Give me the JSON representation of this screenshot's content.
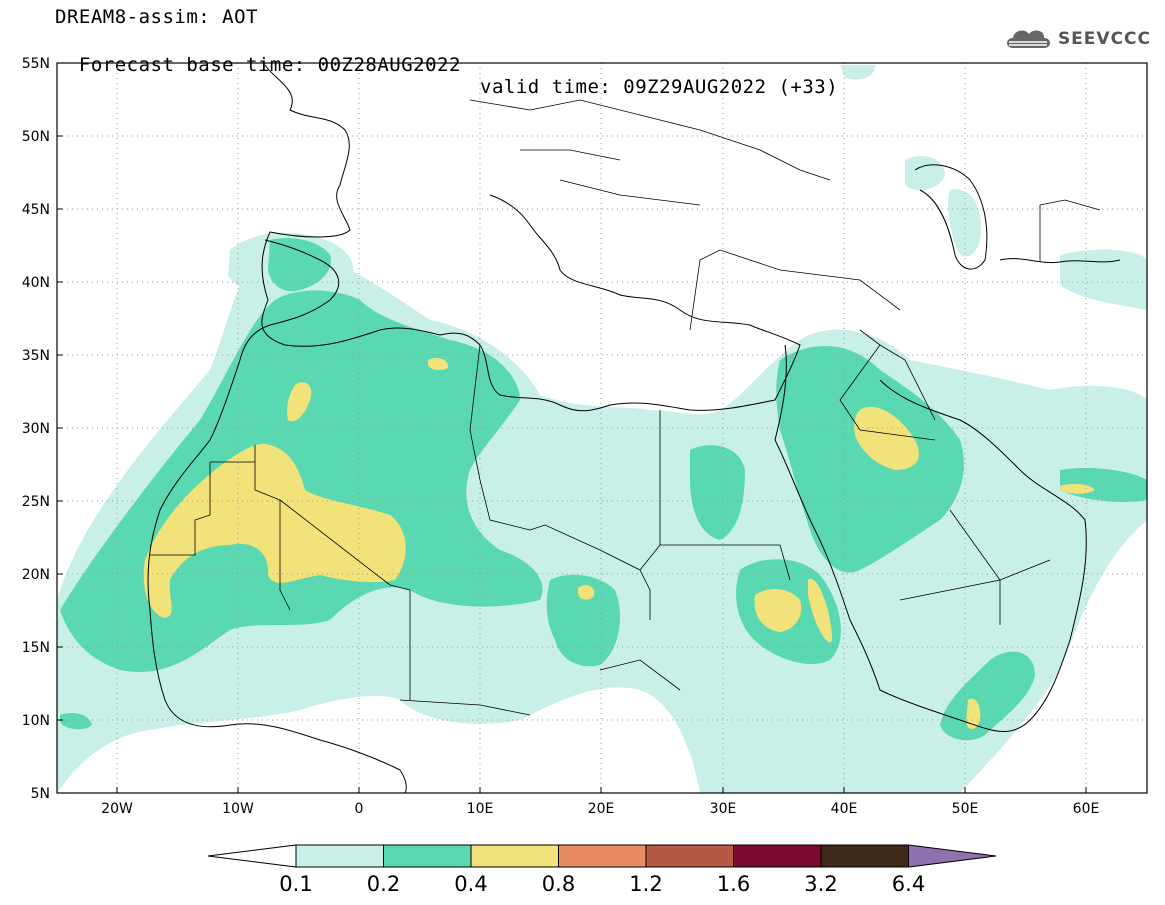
{
  "header": {
    "title": "DREAM8-assim: AOT",
    "base_time": "Forecast base time: 00Z28AUG2022",
    "valid_time": "valid time: 09Z29AUG2022 (+33)"
  },
  "logo": {
    "text": "SEEVCCC",
    "icon": "cloud-logo-icon"
  },
  "map": {
    "lon_range": [
      -25,
      65
    ],
    "lat_range": [
      5,
      55
    ],
    "lat_ticks": [
      "5N",
      "10N",
      "15N",
      "20N",
      "25N",
      "30N",
      "35N",
      "40N",
      "45N",
      "50N",
      "55N"
    ],
    "lon_ticks": [
      "20W",
      "10W",
      "0",
      "10E",
      "20E",
      "30E",
      "40E",
      "50E",
      "60E"
    ],
    "grid": "dotted"
  },
  "colorbar": {
    "labels": [
      "0.1",
      "0.2",
      "0.4",
      "0.8",
      "1.2",
      "1.6",
      "3.2",
      "6.4"
    ],
    "colors": [
      "#c8f0e8",
      "#5ad8b2",
      "#f2e27a",
      "#e98c64",
      "#b55844",
      "#7a0a30",
      "#3e2818",
      "#8e72b0"
    ]
  }
}
